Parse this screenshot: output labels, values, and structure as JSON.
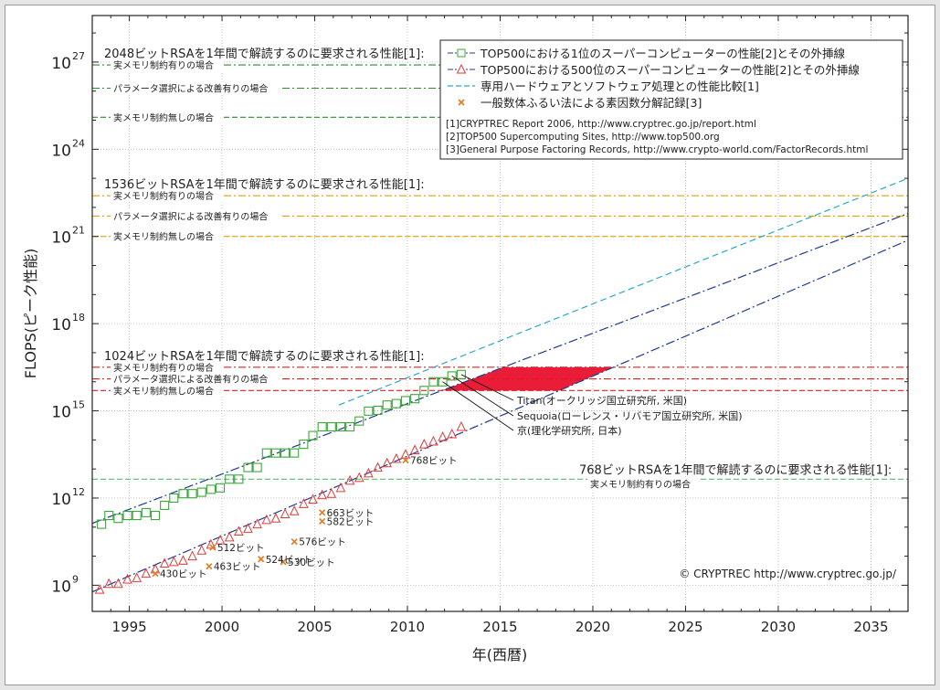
{
  "chart_data": {
    "type": "scatter",
    "xlabel": "年(西暦)",
    "ylabel": "FLOPS(ピーク性能)",
    "x_range": [
      1993,
      2037
    ],
    "y_range_log10": [
      8.1,
      28.6
    ],
    "y_scale": "log",
    "grid": true,
    "x_ticks": [
      "1995",
      "2000",
      "2005",
      "2010",
      "2015",
      "2020",
      "2025",
      "2030",
      "2035"
    ],
    "y_ticks": [
      {
        "mantissa": "10",
        "exp": "9",
        "log10": 9
      },
      {
        "mantissa": "10",
        "exp": "12",
        "log10": 12
      },
      {
        "mantissa": "10",
        "exp": "15",
        "log10": 15
      },
      {
        "mantissa": "10",
        "exp": "18",
        "log10": 18
      },
      {
        "mantissa": "10",
        "exp": "21",
        "log10": 21
      },
      {
        "mantissa": "10",
        "exp": "24",
        "log10": 24
      },
      {
        "mantissa": "10",
        "exp": "27",
        "log10": 27
      }
    ],
    "legend": {
      "position": "top-right",
      "entries": [
        {
          "label": "TOP500における1位のスーパーコンピューターの性能[2]とその外挿線",
          "marker": "square",
          "color": "#3aa83a"
        },
        {
          "label": "TOP500における500位のスーパーコンピューターの性能[2]とその外挿線",
          "marker": "triangle",
          "color": "#e03a3a"
        },
        {
          "label": "専用ハードウェアとソフトウェア処理との性能比較[1]",
          "marker": "dash",
          "color": "#29a8cf"
        },
        {
          "label": "一般数体ふるい法による素因数分解記録[3]",
          "marker": "x",
          "color": "#e07a1a"
        }
      ],
      "refs": [
        "[1]CRYPTREC Report 2006, http://www.cryptrec.go.jp/report.html",
        "[2]TOP500 Supercomputing Sites, http://www.top500.org",
        "[3]General Purpose Factoring Records, http://www.crypto-world.com/FactorRecords.html"
      ]
    },
    "series": [
      {
        "name": "TOP500における1位のスーパーコンピューターの性能[2]とその外挿線",
        "points": [
          [
            1993.5,
            11.1
          ],
          [
            1993.9,
            11.4
          ],
          [
            1994.4,
            11.3
          ],
          [
            1994.9,
            11.4
          ],
          [
            1995.4,
            11.4
          ],
          [
            1995.9,
            11.5
          ],
          [
            1996.4,
            11.4
          ],
          [
            1996.9,
            11.75
          ],
          [
            1997.4,
            12.0
          ],
          [
            1997.9,
            12.15
          ],
          [
            1998.4,
            12.15
          ],
          [
            1998.9,
            12.2
          ],
          [
            1999.4,
            12.3
          ],
          [
            1999.9,
            12.35
          ],
          [
            2000.4,
            12.65
          ],
          [
            2000.9,
            12.65
          ],
          [
            2001.4,
            13.05
          ],
          [
            2001.9,
            13.05
          ],
          [
            2002.4,
            13.55
          ],
          [
            2002.9,
            13.55
          ],
          [
            2003.4,
            13.55
          ],
          [
            2003.9,
            13.55
          ],
          [
            2004.4,
            13.85
          ],
          [
            2004.9,
            14.15
          ],
          [
            2005.4,
            14.45
          ],
          [
            2005.9,
            14.45
          ],
          [
            2006.4,
            14.45
          ],
          [
            2006.9,
            14.45
          ],
          [
            2007.4,
            14.65
          ],
          [
            2007.9,
            14.99
          ],
          [
            2008.4,
            15.02
          ],
          [
            2008.9,
            15.2
          ],
          [
            2009.4,
            15.25
          ],
          [
            2009.9,
            15.35
          ],
          [
            2010.4,
            15.42
          ],
          [
            2010.9,
            15.7
          ],
          [
            2011.4,
            16.0
          ],
          [
            2011.9,
            16.0
          ],
          [
            2012.4,
            16.2
          ],
          [
            2012.9,
            16.25
          ]
        ],
        "trend": [
          [
            1993,
            11.13
          ],
          [
            2037,
            21.79
          ]
        ]
      },
      {
        "name": "TOP500における500位のスーパーコンピューターの性能[2]とその外挿線",
        "points": [
          [
            1993.4,
            8.85
          ],
          [
            1993.9,
            9.05
          ],
          [
            1994.4,
            9.05
          ],
          [
            1994.9,
            9.2
          ],
          [
            1995.4,
            9.25
          ],
          [
            1995.9,
            9.4
          ],
          [
            1996.4,
            9.55
          ],
          [
            1996.9,
            9.75
          ],
          [
            1997.4,
            9.8
          ],
          [
            1997.9,
            9.85
          ],
          [
            1998.4,
            10.0
          ],
          [
            1998.9,
            10.2
          ],
          [
            1999.4,
            10.4
          ],
          [
            1999.9,
            10.55
          ],
          [
            2000.4,
            10.65
          ],
          [
            2000.9,
            10.85
          ],
          [
            2001.4,
            10.95
          ],
          [
            2001.9,
            11.1
          ],
          [
            2002.4,
            11.25
          ],
          [
            2002.9,
            11.3
          ],
          [
            2003.4,
            11.45
          ],
          [
            2003.9,
            11.55
          ],
          [
            2004.4,
            11.8
          ],
          [
            2004.9,
            11.95
          ],
          [
            2005.4,
            12.1
          ],
          [
            2005.9,
            12.15
          ],
          [
            2006.4,
            12.35
          ],
          [
            2006.9,
            12.6
          ],
          [
            2007.4,
            12.7
          ],
          [
            2007.9,
            12.85
          ],
          [
            2008.4,
            13.05
          ],
          [
            2008.9,
            13.2
          ],
          [
            2009.4,
            13.35
          ],
          [
            2009.9,
            13.5
          ],
          [
            2010.4,
            13.65
          ],
          [
            2010.9,
            13.85
          ],
          [
            2011.4,
            13.95
          ],
          [
            2011.9,
            14.1
          ],
          [
            2012.4,
            14.2
          ],
          [
            2012.9,
            14.45
          ]
        ],
        "trend": [
          [
            1993,
            8.77
          ],
          [
            2037,
            20.87
          ]
        ]
      },
      {
        "name": "専用ハードウェアとソフトウェア処理との性能比較[1]",
        "points": [],
        "trend": [
          [
            2006.3,
            15.2
          ],
          [
            2037,
            23.0
          ]
        ]
      },
      {
        "name": "一般数体ふるい法による素因数分解記録[3]",
        "points": [
          {
            "x": 1996.4,
            "y": 9.4,
            "label": "430ビット"
          },
          {
            "x": 1999.3,
            "y": 9.65,
            "label": "463ビット"
          },
          {
            "x": 1999.5,
            "y": 10.3,
            "label": "512ビット"
          },
          {
            "x": 2002.1,
            "y": 9.9,
            "label": "524ビット"
          },
          {
            "x": 2003.3,
            "y": 9.8,
            "label": "530ビット"
          },
          {
            "x": 2003.9,
            "y": 10.5,
            "label": "576ビット"
          },
          {
            "x": 2005.4,
            "y": 11.2,
            "label": "582ビット"
          },
          {
            "x": 2005.4,
            "y": 11.5,
            "label": "663ビット"
          },
          {
            "x": 2009.9,
            "y": 13.3,
            "label": "768ビット"
          }
        ]
      }
    ],
    "rsa_thresholds": [
      {
        "title": "2048ビットRSAを1年間で解読するのに要求される性能[1]:",
        "color": "#2a8f2a",
        "levels": [
          {
            "label": "実メモリ制約有りの場合",
            "log10": 26.9
          },
          {
            "label": "パラメータ選択による改善有りの場合",
            "log10": 26.1
          },
          {
            "label": "実メモリ制約無しの場合",
            "log10": 25.1
          }
        ]
      },
      {
        "title": "1536ビットRSAを1年間で解読するのに要求される性能[1]:",
        "color": "#e8a000",
        "levels": [
          {
            "label": "実メモリ制約有りの場合",
            "log10": 22.4
          },
          {
            "label": "パラメータ選択による改善有りの場合",
            "log10": 21.7
          },
          {
            "label": "実メモリ制約無しの場合",
            "log10": 21.0
          }
        ]
      },
      {
        "title": "1024ビットRSAを1年間で解読するのに要求される性能[1]:",
        "color": "#e02020",
        "levels": [
          {
            "label": "実メモリ制約有りの場合",
            "log10": 16.5
          },
          {
            "label": "パラメータ選択による改善有りの場合",
            "log10": 16.1
          },
          {
            "label": "実メモリ制約無しの場合",
            "log10": 15.7
          }
        ]
      },
      {
        "title": "768ビットRSAを1年間で解読するのに要求される性能[1]:",
        "color": "#4cc46c",
        "levels": [
          {
            "label": "実メモリ制約有りの場合",
            "log10": 12.65
          }
        ]
      }
    ],
    "highlight_band": {
      "color": "#e8112d",
      "x_start": 2011.5,
      "x_end": 2020.0,
      "y_low": 15.7,
      "y_high": 16.5
    },
    "annotations": [
      {
        "text": "Titan(オークリッジ国立研究所, 米国)",
        "x": 2012.9,
        "y": 16.25
      },
      {
        "text": "Sequoia(ローレンス・リバモア国立研究所, 米国)",
        "x": 2012.4,
        "y": 16.2
      },
      {
        "text": "京(理化学研究所, 日本)",
        "x": 2011.9,
        "y": 16.0
      }
    ],
    "copyright": "© CRYPTREC http://www.cryptrec.go.jp/"
  }
}
